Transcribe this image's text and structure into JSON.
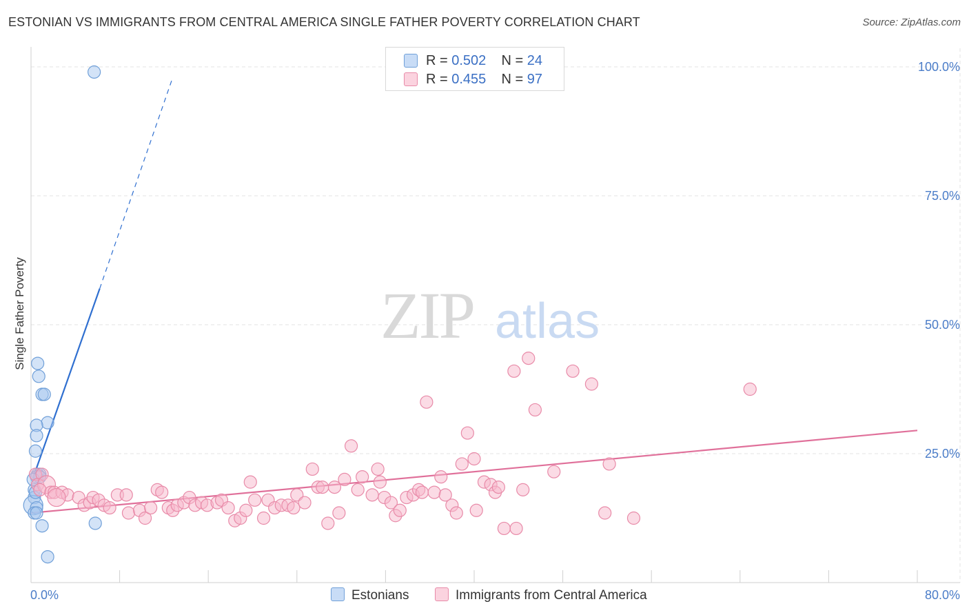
{
  "title": "ESTONIAN VS IMMIGRANTS FROM CENTRAL AMERICA SINGLE FATHER POVERTY CORRELATION CHART",
  "source": "Source: ZipAtlas.com",
  "watermark": {
    "zip": "ZIP",
    "atlas": "atlas"
  },
  "legend": {
    "rows": [
      {
        "r_label": "R = ",
        "r_value": "0.502",
        "n_label": "N = ",
        "n_value": "24",
        "color": "#a8c8f0",
        "border": "#6f9fd8"
      },
      {
        "r_label": "R = ",
        "r_value": "0.455",
        "n_label": "N = ",
        "n_value": "97",
        "color": "#f7b8cc",
        "border": "#e88aa8"
      }
    ]
  },
  "bottom_legend": [
    {
      "label": "Estonians",
      "color": "#a8c8f0",
      "border": "#6f9fd8"
    },
    {
      "label": "Immigrants from Central America",
      "color": "#f7b8cc",
      "border": "#e88aa8"
    }
  ],
  "chart_data": {
    "type": "scatter",
    "title": "ESTONIAN VS IMMIGRANTS FROM CENTRAL AMERICA SINGLE FATHER POVERTY CORRELATION CHART",
    "xlabel": "",
    "ylabel": "Single Father Poverty",
    "xlim": [
      0,
      80
    ],
    "ylim": [
      0,
      100
    ],
    "x_tick_labels": [
      "0.0%",
      "80.0%"
    ],
    "y_ticks": [
      25,
      50,
      75,
      100
    ],
    "y_tick_labels": [
      "25.0%",
      "50.0%",
      "75.0%",
      "100.0%"
    ],
    "grid": true,
    "series": [
      {
        "name": "Estonians",
        "color": "#6f9fd8",
        "fill": "#a8c8f0",
        "line_color": "#2f6fd0",
        "trend": {
          "x0": 0.3,
          "y0": 21,
          "x1": 6.2,
          "y1": 57,
          "dash_x1": 12.8,
          "dash_y1": 98
        },
        "points": [
          [
            5.7,
            99
          ],
          [
            0.6,
            42.5
          ],
          [
            0.7,
            40
          ],
          [
            1.0,
            36.5
          ],
          [
            1.2,
            36.5
          ],
          [
            1.5,
            31
          ],
          [
            0.5,
            30.5
          ],
          [
            0.5,
            28.5
          ],
          [
            0.4,
            25.5
          ],
          [
            0.6,
            21
          ],
          [
            0.8,
            21
          ],
          [
            0.5,
            20.5
          ],
          [
            0.8,
            20.5
          ],
          [
            0.3,
            18
          ],
          [
            0.3,
            16.5
          ],
          [
            0.2,
            15
          ],
          [
            0.5,
            14.5
          ],
          [
            0.3,
            13.5
          ],
          [
            0.5,
            13.5
          ],
          [
            1.0,
            11
          ],
          [
            5.8,
            11.5
          ],
          [
            1.5,
            5
          ],
          [
            0.2,
            20
          ],
          [
            0.4,
            17.5
          ]
        ],
        "point_sizes": [
          9,
          9,
          9,
          9,
          9,
          9,
          9,
          9,
          9,
          9,
          9,
          9,
          9,
          9,
          9,
          14,
          9,
          9,
          9,
          9,
          9,
          9,
          9,
          9
        ]
      },
      {
        "name": "Immigrants from Central America",
        "color": "#e88aa8",
        "fill": "#f7b8cc",
        "line_color": "#e0709a",
        "trend": {
          "x0": 0,
          "y0": 13.5,
          "x1": 80,
          "y1": 29.5
        },
        "points": [
          [
            0.4,
            21
          ],
          [
            1.0,
            21
          ],
          [
            0.6,
            19
          ],
          [
            1.4,
            19
          ],
          [
            0.8,
            18
          ],
          [
            1.8,
            17.5
          ],
          [
            2.1,
            17.5
          ],
          [
            2.8,
            17.5
          ],
          [
            3.3,
            17
          ],
          [
            4.3,
            16.5
          ],
          [
            4.8,
            15
          ],
          [
            5.3,
            15.5
          ],
          [
            5.6,
            16.5
          ],
          [
            6.1,
            16
          ],
          [
            6.6,
            15
          ],
          [
            7.1,
            14.5
          ],
          [
            7.8,
            17
          ],
          [
            8.6,
            17
          ],
          [
            8.8,
            13.5
          ],
          [
            9.8,
            14
          ],
          [
            10.3,
            12.5
          ],
          [
            10.8,
            14.5
          ],
          [
            11.4,
            18
          ],
          [
            11.8,
            17.5
          ],
          [
            12.4,
            14.5
          ],
          [
            12.8,
            14
          ],
          [
            13.2,
            15
          ],
          [
            13.8,
            15.5
          ],
          [
            14.3,
            16.5
          ],
          [
            14.8,
            15
          ],
          [
            15.4,
            15.5
          ],
          [
            15.9,
            15
          ],
          [
            16.8,
            15.5
          ],
          [
            17.2,
            16
          ],
          [
            17.8,
            14.5
          ],
          [
            18.4,
            12
          ],
          [
            18.9,
            12.5
          ],
          [
            19.4,
            14
          ],
          [
            19.8,
            19.5
          ],
          [
            20.2,
            16
          ],
          [
            21.0,
            12.5
          ],
          [
            21.4,
            16
          ],
          [
            22.0,
            14.5
          ],
          [
            22.6,
            15
          ],
          [
            23.2,
            15
          ],
          [
            23.7,
            14.5
          ],
          [
            24.0,
            17
          ],
          [
            24.7,
            15.5
          ],
          [
            25.4,
            22
          ],
          [
            25.9,
            18.5
          ],
          [
            26.3,
            18.5
          ],
          [
            26.8,
            11.5
          ],
          [
            27.4,
            18.5
          ],
          [
            27.8,
            13.5
          ],
          [
            28.3,
            20
          ],
          [
            28.9,
            26.5
          ],
          [
            29.5,
            18
          ],
          [
            29.9,
            20.5
          ],
          [
            30.8,
            17
          ],
          [
            31.3,
            22
          ],
          [
            31.5,
            19.5
          ],
          [
            31.9,
            16.5
          ],
          [
            32.5,
            15.5
          ],
          [
            32.9,
            13
          ],
          [
            33.3,
            14
          ],
          [
            33.9,
            16.5
          ],
          [
            34.5,
            17
          ],
          [
            35.0,
            18
          ],
          [
            35.3,
            17.5
          ],
          [
            35.7,
            35
          ],
          [
            36.4,
            17.5
          ],
          [
            37.0,
            20.5
          ],
          [
            37.4,
            17
          ],
          [
            38.0,
            15
          ],
          [
            38.4,
            13.5
          ],
          [
            38.9,
            23
          ],
          [
            39.4,
            29
          ],
          [
            40.0,
            24
          ],
          [
            40.2,
            14
          ],
          [
            40.9,
            19.5
          ],
          [
            41.5,
            19
          ],
          [
            41.9,
            17.5
          ],
          [
            42.2,
            18.5
          ],
          [
            42.7,
            10.5
          ],
          [
            43.6,
            41
          ],
          [
            43.8,
            10.5
          ],
          [
            44.4,
            18
          ],
          [
            44.9,
            43.5
          ],
          [
            45.5,
            33.5
          ],
          [
            47.2,
            21.5
          ],
          [
            48.9,
            41
          ],
          [
            50.6,
            38.5
          ],
          [
            51.8,
            13.5
          ],
          [
            52.2,
            23
          ],
          [
            54.4,
            12.5
          ],
          [
            64.9,
            37.5
          ],
          [
            2.3,
            16.5
          ]
        ],
        "point_sizes": [
          9,
          9,
          9,
          13,
          9,
          9,
          9,
          9,
          9,
          9,
          9,
          9,
          9,
          9,
          9,
          9,
          9,
          9,
          9,
          9,
          9,
          9,
          9,
          9,
          9,
          9,
          9,
          9,
          9,
          9,
          9,
          9,
          9,
          9,
          9,
          9,
          9,
          9,
          9,
          9,
          9,
          9,
          9,
          9,
          9,
          9,
          9,
          9,
          9,
          9,
          9,
          9,
          9,
          9,
          9,
          9,
          9,
          9,
          9,
          9,
          9,
          9,
          9,
          9,
          9,
          9,
          9,
          9,
          9,
          9,
          9,
          9,
          9,
          9,
          9,
          9,
          9,
          9,
          9,
          9,
          9,
          9,
          9,
          9,
          9,
          9,
          9,
          9,
          9,
          9,
          9,
          9,
          9,
          9,
          9,
          9,
          13
        ]
      }
    ]
  }
}
